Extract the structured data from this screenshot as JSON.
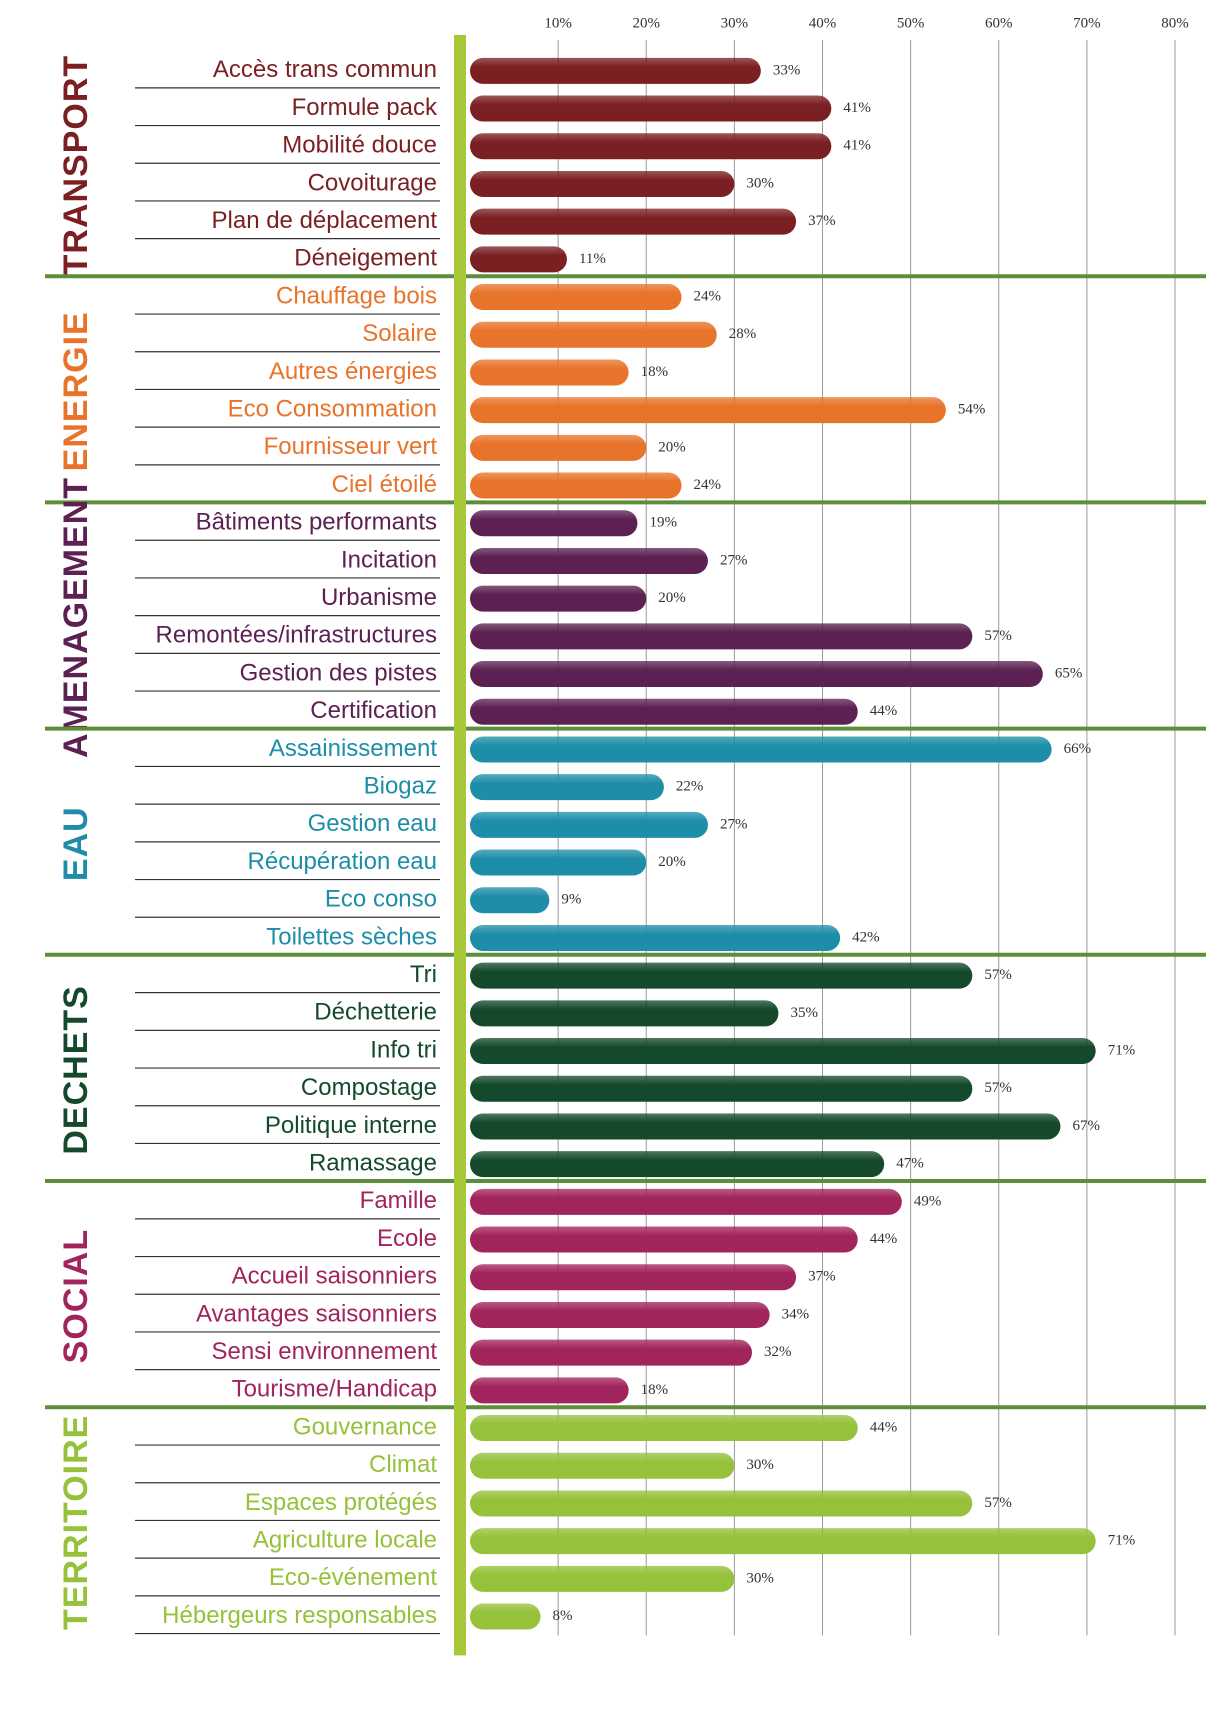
{
  "chart_data": {
    "type": "bar",
    "orientation": "horizontal",
    "xlim": [
      0,
      80
    ],
    "xticks": [
      {
        "value": 10,
        "label": "10%"
      },
      {
        "value": 20,
        "label": "20%"
      },
      {
        "value": 30,
        "label": "30%"
      },
      {
        "value": 40,
        "label": "40%"
      },
      {
        "value": 50,
        "label": "50%"
      },
      {
        "value": 60,
        "label": "60%"
      },
      {
        "value": 70,
        "label": "70%"
      },
      {
        "value": 80,
        "label": "80%"
      }
    ],
    "grid": true,
    "groups": [
      {
        "name": "TRANSPORT",
        "color": "#7a1f22",
        "categories": [
          "Accès trans commun",
          "Formule pack",
          "Mobilité douce",
          "Covoiturage",
          "Plan de déplacement",
          "Déneigement"
        ],
        "values": [
          33,
          41,
          41,
          30,
          37,
          11
        ],
        "value_labels": [
          "33%",
          "41%",
          "41%",
          "30%",
          "37%",
          "11%"
        ]
      },
      {
        "name": "ENERGIE",
        "color": "#e8732a",
        "categories": [
          "Chauffage bois",
          "Solaire",
          "Autres énergies",
          "Eco Consommation",
          "Fournisseur vert",
          "Ciel étoilé"
        ],
        "values": [
          24,
          28,
          18,
          54,
          20,
          24
        ],
        "value_labels": [
          "24%",
          "28%",
          "18%",
          "54%",
          "20%",
          "24%"
        ]
      },
      {
        "name": "AMENAGEMENT",
        "color": "#5c2152",
        "categories": [
          "Bâtiments performants",
          "Incitation",
          "Urbanisme",
          "Remontées/infrastructures",
          "Gestion des pistes",
          "Certification"
        ],
        "values": [
          19,
          27,
          20,
          57,
          65,
          44
        ],
        "value_labels": [
          "19%",
          "27%",
          "20%",
          "57%",
          "65%",
          "44%"
        ]
      },
      {
        "name": "EAU",
        "color": "#1e8ea8",
        "categories": [
          "Assainissement",
          "Biogaz",
          "Gestion eau",
          "Récupération eau",
          "Eco conso",
          "Toilettes sèches"
        ],
        "values": [
          66,
          22,
          27,
          20,
          9,
          42
        ],
        "value_labels": [
          "66%",
          "22%",
          "27%",
          "20%",
          "9%",
          "42%"
        ]
      },
      {
        "name": "DECHETS",
        "color": "#144a2b",
        "categories": [
          "Tri",
          "Déchetterie",
          "Info tri",
          "Compostage",
          "Politique interne",
          "Ramassage"
        ],
        "values": [
          57,
          35,
          71,
          57,
          67,
          47
        ],
        "value_labels": [
          "57%",
          "35%",
          "71%",
          "57%",
          "67%",
          "47%"
        ]
      },
      {
        "name": "SOCIAL",
        "color": "#a2245c",
        "categories": [
          "Famille",
          "Ecole",
          "Accueil saisonniers",
          "Avantages saisonniers",
          "Sensi environnement",
          "Tourisme/Handicap"
        ],
        "values": [
          49,
          44,
          37,
          34,
          32,
          18
        ],
        "value_labels": [
          "49%",
          "44%",
          "37%",
          "34%",
          "32%",
          "18%"
        ]
      },
      {
        "name": "TERRITOIRE",
        "color": "#96c13a",
        "categories": [
          "Gouvernance",
          "Climat",
          "Espaces protégés",
          "Agriculture locale",
          "Eco-événement",
          "Hébergeurs responsables"
        ],
        "values": [
          44,
          30,
          57,
          71,
          30,
          8
        ],
        "value_labels": [
          "44%",
          "30%",
          "57%",
          "71%",
          "30%",
          "8%"
        ]
      }
    ]
  }
}
